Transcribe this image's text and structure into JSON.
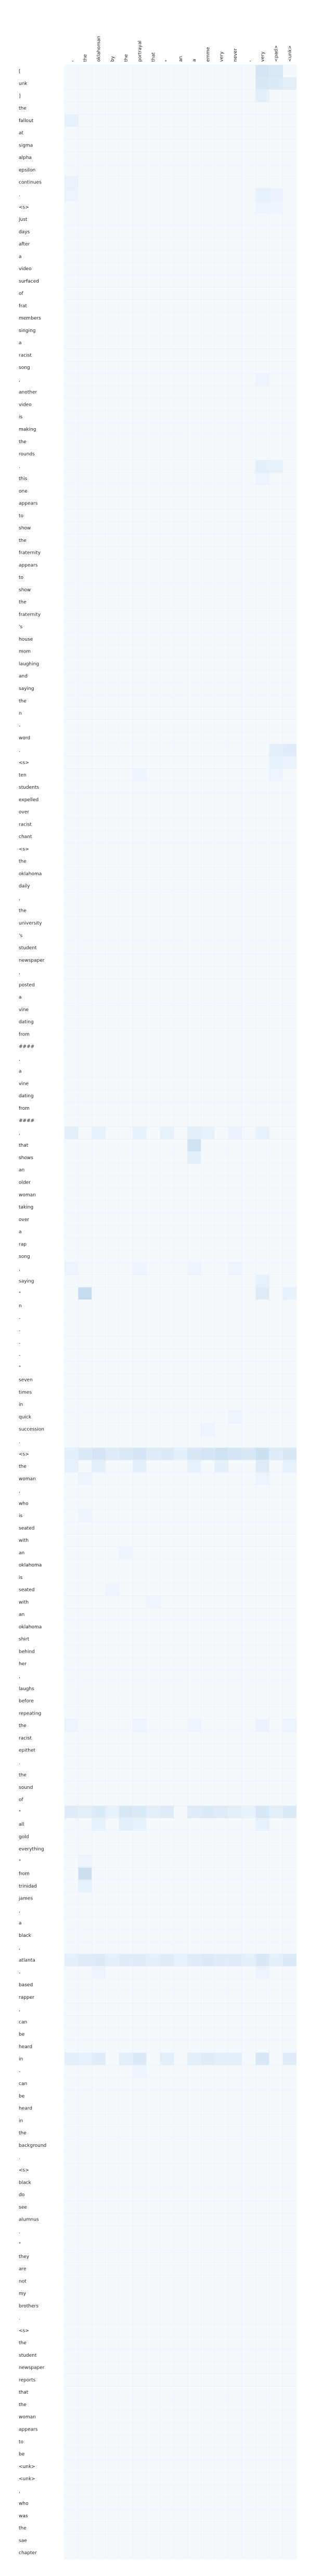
{
  "chart_data": {
    "type": "heatmap",
    "x_labels": [
      ",",
      "the",
      "oklahoman",
      "by",
      "the",
      "portrayal",
      "that",
      "\"",
      "an",
      "a",
      "emme",
      "very",
      "never",
      ",",
      "very",
      "<pad>",
      "<unk>"
    ],
    "y_labels": [
      "[",
      "unk",
      "]",
      "the",
      "fallout",
      "at",
      "sigma",
      "alpha",
      "epsilon",
      "continues",
      ".",
      "<s>",
      "just",
      "days",
      "after",
      "a",
      "video",
      "surfaced",
      "of",
      "frat",
      "members",
      "singing",
      "a",
      "racist",
      "song",
      ",",
      "another",
      "video",
      "is",
      "making",
      "the",
      "rounds",
      ".",
      "this",
      "one",
      "appears",
      "to",
      "show",
      "the",
      "fraternity",
      "appears",
      "to",
      "show",
      "the",
      "fraternity",
      "'s",
      "house",
      "mom",
      "laughing",
      "and",
      "saying",
      "the",
      "n",
      "-",
      "word",
      ".",
      "<s>",
      "ten",
      "students",
      "expelled",
      "over",
      "racist",
      "chant",
      "<s>",
      "the",
      "oklahoma",
      "daily",
      ",",
      "the",
      "university",
      "'s",
      "student",
      "newspaper",
      ",",
      "posted",
      "a",
      "vine",
      "dating",
      "from",
      "####",
      ",",
      "a",
      "vine",
      "dating",
      "from",
      "####",
      ",",
      "that",
      "shows",
      "an",
      "older",
      "woman",
      "taking",
      "over",
      "a",
      "rap",
      "song",
      ",",
      "saying",
      "\"",
      "n",
      "-",
      "-",
      "-",
      "-",
      "\"",
      "seven",
      "times",
      "in",
      "quick",
      "succession",
      ".",
      "<s>",
      "the",
      "woman",
      ",",
      "who",
      "is",
      "seated",
      "with",
      "an",
      "oklahoma",
      "is",
      "seated",
      "with",
      "an",
      "oklahoma",
      "shirt",
      "behind",
      "her",
      ",",
      "laughs",
      "before",
      "repeating",
      "the",
      "racist",
      "epithet",
      ".",
      "the",
      "sound",
      "of",
      "\"",
      "all",
      "gold",
      "everything",
      "\"",
      "from",
      "trinidad",
      "james",
      ",",
      "a",
      "black",
      ",",
      "atlanta",
      "-",
      "based",
      "rapper",
      ",",
      "can",
      "be",
      "heard",
      "in",
      "-",
      "can",
      "be",
      "heard",
      "in",
      "the",
      "background",
      ".",
      "<s>",
      "black",
      "do",
      "see",
      "alumnus",
      ".",
      "\"",
      "they",
      "are",
      "not",
      "my",
      "brothers",
      ".",
      "<s>",
      "the",
      "student",
      "newspaper",
      "reports",
      "that",
      "the",
      "woman",
      "appears",
      "to",
      "be",
      "<unk>",
      "<unk>",
      ",",
      "who",
      "was",
      "the",
      "sae",
      "chapter"
    ],
    "color_scale": {
      "low": "#f7fbff",
      "high": "#2f7fc1",
      "min": 0,
      "max": 1
    },
    "highlights": [
      {
        "row": 0,
        "col": 14,
        "value": 0.18
      },
      {
        "row": 0,
        "col": 15,
        "value": 0.15
      },
      {
        "row": 1,
        "col": 14,
        "value": 0.16
      },
      {
        "row": 1,
        "col": 15,
        "value": 0.14
      },
      {
        "row": 1,
        "col": 16,
        "value": 0.1
      },
      {
        "row": 2,
        "col": 14,
        "value": 0.1
      },
      {
        "row": 4,
        "col": 0,
        "value": 0.08
      },
      {
        "row": 9,
        "col": 0,
        "value": 0.07
      },
      {
        "row": 10,
        "col": 0,
        "value": 0.06
      },
      {
        "row": 10,
        "col": 14,
        "value": 0.08
      },
      {
        "row": 10,
        "col": 15,
        "value": 0.07
      },
      {
        "row": 11,
        "col": 14,
        "value": 0.06
      },
      {
        "row": 11,
        "col": 15,
        "value": 0.05
      },
      {
        "row": 25,
        "col": 14,
        "value": 0.06
      },
      {
        "row": 32,
        "col": 14,
        "value": 0.1
      },
      {
        "row": 32,
        "col": 15,
        "value": 0.08
      },
      {
        "row": 33,
        "col": 14,
        "value": 0.06
      },
      {
        "row": 55,
        "col": 15,
        "value": 0.1
      },
      {
        "row": 55,
        "col": 16,
        "value": 0.12
      },
      {
        "row": 56,
        "col": 15,
        "value": 0.08
      },
      {
        "row": 56,
        "col": 16,
        "value": 0.07
      },
      {
        "row": 57,
        "col": 5,
        "value": 0.05
      },
      {
        "row": 57,
        "col": 15,
        "value": 0.06
      },
      {
        "row": 86,
        "col": 0,
        "value": 0.1
      },
      {
        "row": 86,
        "col": 2,
        "value": 0.09
      },
      {
        "row": 86,
        "col": 5,
        "value": 0.08
      },
      {
        "row": 86,
        "col": 7,
        "value": 0.08
      },
      {
        "row": 86,
        "col": 9,
        "value": 0.1
      },
      {
        "row": 86,
        "col": 10,
        "value": 0.08
      },
      {
        "row": 86,
        "col": 12,
        "value": 0.07
      },
      {
        "row": 86,
        "col": 14,
        "value": 0.08
      },
      {
        "row": 87,
        "col": 9,
        "value": 0.2
      },
      {
        "row": 88,
        "col": 9,
        "value": 0.1
      },
      {
        "row": 97,
        "col": 0,
        "value": 0.06
      },
      {
        "row": 97,
        "col": 5,
        "value": 0.05
      },
      {
        "row": 97,
        "col": 9,
        "value": 0.05
      },
      {
        "row": 97,
        "col": 12,
        "value": 0.06
      },
      {
        "row": 98,
        "col": 14,
        "value": 0.08
      },
      {
        "row": 99,
        "col": 1,
        "value": 0.25
      },
      {
        "row": 99,
        "col": 14,
        "value": 0.12
      },
      {
        "row": 99,
        "col": 16,
        "value": 0.08
      },
      {
        "row": 109,
        "col": 12,
        "value": 0.06
      },
      {
        "row": 110,
        "col": 10,
        "value": 0.05
      },
      {
        "row": 112,
        "col": 0,
        "value": 0.1
      },
      {
        "row": 112,
        "col": 1,
        "value": 0.14
      },
      {
        "row": 112,
        "col": 2,
        "value": 0.18
      },
      {
        "row": 112,
        "col": 3,
        "value": 0.12
      },
      {
        "row": 112,
        "col": 4,
        "value": 0.15
      },
      {
        "row": 112,
        "col": 5,
        "value": 0.18
      },
      {
        "row": 112,
        "col": 6,
        "value": 0.12
      },
      {
        "row": 112,
        "col": 7,
        "value": 0.14
      },
      {
        "row": 112,
        "col": 8,
        "value": 0.1
      },
      {
        "row": 112,
        "col": 9,
        "value": 0.16
      },
      {
        "row": 112,
        "col": 10,
        "value": 0.18
      },
      {
        "row": 112,
        "col": 11,
        "value": 0.2
      },
      {
        "row": 112,
        "col": 12,
        "value": 0.18
      },
      {
        "row": 112,
        "col": 13,
        "value": 0.16
      },
      {
        "row": 112,
        "col": 14,
        "value": 0.22
      },
      {
        "row": 112,
        "col": 15,
        "value": 0.12
      },
      {
        "row": 112,
        "col": 16,
        "value": 0.16
      },
      {
        "row": 113,
        "col": 0,
        "value": 0.08
      },
      {
        "row": 113,
        "col": 2,
        "value": 0.1
      },
      {
        "row": 113,
        "col": 5,
        "value": 0.1
      },
      {
        "row": 113,
        "col": 9,
        "value": 0.08
      },
      {
        "row": 113,
        "col": 11,
        "value": 0.1
      },
      {
        "row": 113,
        "col": 14,
        "value": 0.12
      },
      {
        "row": 113,
        "col": 16,
        "value": 0.08
      },
      {
        "row": 114,
        "col": 1,
        "value": 0.06
      },
      {
        "row": 114,
        "col": 14,
        "value": 0.06
      },
      {
        "row": 117,
        "col": 1,
        "value": 0.05
      },
      {
        "row": 120,
        "col": 4,
        "value": 0.05
      },
      {
        "row": 123,
        "col": 3,
        "value": 0.05
      },
      {
        "row": 124,
        "col": 6,
        "value": 0.04
      },
      {
        "row": 134,
        "col": 0,
        "value": 0.06
      },
      {
        "row": 134,
        "col": 5,
        "value": 0.06
      },
      {
        "row": 134,
        "col": 9,
        "value": 0.05
      },
      {
        "row": 134,
        "col": 14,
        "value": 0.07
      },
      {
        "row": 134,
        "col": 16,
        "value": 0.06
      },
      {
        "row": 141,
        "col": 0,
        "value": 0.12
      },
      {
        "row": 141,
        "col": 1,
        "value": 0.1
      },
      {
        "row": 141,
        "col": 2,
        "value": 0.14
      },
      {
        "row": 141,
        "col": 3,
        "value": 0.08
      },
      {
        "row": 141,
        "col": 4,
        "value": 0.16
      },
      {
        "row": 141,
        "col": 5,
        "value": 0.14
      },
      {
        "row": 141,
        "col": 6,
        "value": 0.1
      },
      {
        "row": 141,
        "col": 7,
        "value": 0.12
      },
      {
        "row": 141,
        "col": 9,
        "value": 0.12
      },
      {
        "row": 141,
        "col": 10,
        "value": 0.14
      },
      {
        "row": 141,
        "col": 11,
        "value": 0.12
      },
      {
        "row": 141,
        "col": 12,
        "value": 0.1
      },
      {
        "row": 141,
        "col": 13,
        "value": 0.08
      },
      {
        "row": 141,
        "col": 14,
        "value": 0.16
      },
      {
        "row": 141,
        "col": 15,
        "value": 0.1
      },
      {
        "row": 141,
        "col": 16,
        "value": 0.14
      },
      {
        "row": 142,
        "col": 2,
        "value": 0.08
      },
      {
        "row": 142,
        "col": 4,
        "value": 0.1
      },
      {
        "row": 142,
        "col": 5,
        "value": 0.08
      },
      {
        "row": 142,
        "col": 14,
        "value": 0.08
      },
      {
        "row": 145,
        "col": 1,
        "value": 0.06
      },
      {
        "row": 146,
        "col": 1,
        "value": 0.22
      },
      {
        "row": 147,
        "col": 1,
        "value": 0.08
      },
      {
        "row": 153,
        "col": 0,
        "value": 0.1
      },
      {
        "row": 153,
        "col": 1,
        "value": 0.12
      },
      {
        "row": 153,
        "col": 2,
        "value": 0.14
      },
      {
        "row": 153,
        "col": 3,
        "value": 0.1
      },
      {
        "row": 153,
        "col": 4,
        "value": 0.12
      },
      {
        "row": 153,
        "col": 5,
        "value": 0.12
      },
      {
        "row": 153,
        "col": 6,
        "value": 0.1
      },
      {
        "row": 153,
        "col": 7,
        "value": 0.12
      },
      {
        "row": 153,
        "col": 8,
        "value": 0.08
      },
      {
        "row": 153,
        "col": 9,
        "value": 0.12
      },
      {
        "row": 153,
        "col": 10,
        "value": 0.14
      },
      {
        "row": 153,
        "col": 11,
        "value": 0.12
      },
      {
        "row": 153,
        "col": 12,
        "value": 0.12
      },
      {
        "row": 153,
        "col": 13,
        "value": 0.1
      },
      {
        "row": 153,
        "col": 14,
        "value": 0.16
      },
      {
        "row": 153,
        "col": 15,
        "value": 0.1
      },
      {
        "row": 153,
        "col": 16,
        "value": 0.14
      },
      {
        "row": 154,
        "col": 2,
        "value": 0.06
      },
      {
        "row": 154,
        "col": 14,
        "value": 0.06
      },
      {
        "row": 161,
        "col": 0,
        "value": 0.1
      },
      {
        "row": 161,
        "col": 1,
        "value": 0.08
      },
      {
        "row": 161,
        "col": 2,
        "value": 0.12
      },
      {
        "row": 161,
        "col": 4,
        "value": 0.1
      },
      {
        "row": 161,
        "col": 5,
        "value": 0.14
      },
      {
        "row": 161,
        "col": 7,
        "value": 0.1
      },
      {
        "row": 161,
        "col": 9,
        "value": 0.1
      },
      {
        "row": 161,
        "col": 10,
        "value": 0.12
      },
      {
        "row": 161,
        "col": 11,
        "value": 0.1
      },
      {
        "row": 161,
        "col": 12,
        "value": 0.1
      },
      {
        "row": 161,
        "col": 14,
        "value": 0.16
      },
      {
        "row": 161,
        "col": 16,
        "value": 0.12
      },
      {
        "row": 162,
        "col": 5,
        "value": 0.05
      }
    ]
  }
}
